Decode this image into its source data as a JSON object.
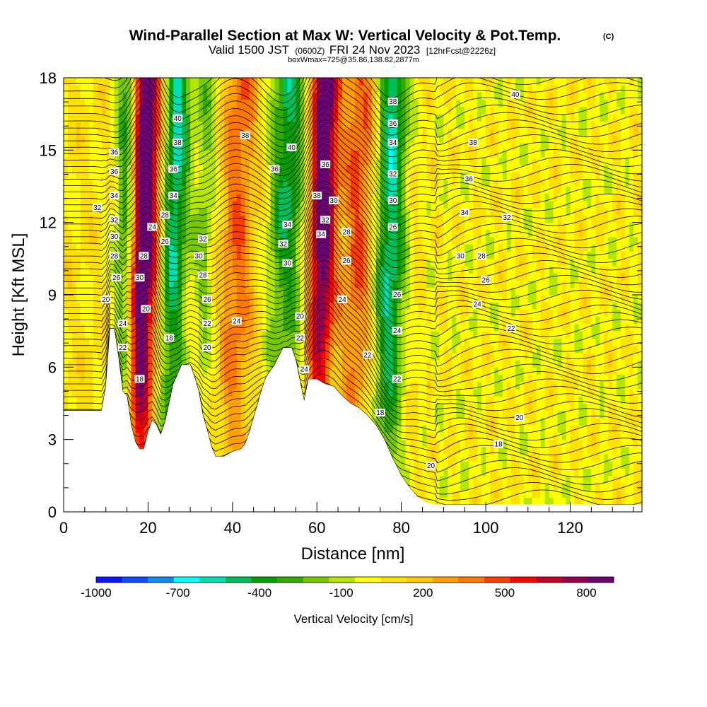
{
  "chart_data": {
    "type": "heatmap",
    "title": "Wind-Parallel Section at Max W: Vertical Velocity & Pot.Temp.",
    "title_mark": "(C)",
    "subtitle_main": "Valid 1500 JST",
    "subtitle_z": "(0600Z)",
    "subtitle_date": "FRI 24 Nov 2023",
    "subtitle_fcst": "[12hrFcst@2226z]",
    "subtitle2": "boxWmax=725@35.86,138.82,2877m",
    "xlabel": "Distance [nm]",
    "ylabel": "Height [Kft MSL]",
    "xlim": [
      0,
      137
    ],
    "ylim": [
      0,
      18
    ],
    "x_ticks": [
      0,
      20,
      40,
      60,
      80,
      100,
      120
    ],
    "y_ticks": [
      0,
      3,
      6,
      9,
      12,
      15,
      18
    ],
    "grid": false,
    "colorbar": {
      "label": "Vertical Velocity [cm/s]",
      "levels": [
        -1000,
        -700,
        -400,
        -100,
        200,
        500,
        800
      ],
      "colors": [
        "#0a14ff",
        "#0a4bff",
        "#0a8cf0",
        "#00ffff",
        "#00e0b4",
        "#00be5a",
        "#00a000",
        "#32aa00",
        "#78c800",
        "#b4e600",
        "#ffff00",
        "#ffe100",
        "#ffc800",
        "#ffa000",
        "#ff7800",
        "#ff3c00",
        "#ff0000",
        "#c80028",
        "#960050",
        "#6e0078"
      ]
    },
    "terrain_nm_kft": [
      [
        0,
        4.2
      ],
      [
        9,
        4.2
      ],
      [
        10,
        5.2
      ],
      [
        11,
        7.6
      ],
      [
        12,
        7.6
      ],
      [
        13,
        6.4
      ],
      [
        14,
        5.0
      ],
      [
        15,
        4.8
      ],
      [
        16,
        3.6
      ],
      [
        17,
        2.9
      ],
      [
        18,
        2.6
      ],
      [
        19,
        2.6
      ],
      [
        20,
        3.3
      ],
      [
        21,
        3.8
      ],
      [
        22,
        3.6
      ],
      [
        23,
        3.2
      ],
      [
        24,
        3.7
      ],
      [
        25,
        4.5
      ],
      [
        26,
        5.3
      ],
      [
        27,
        5.7
      ],
      [
        28,
        6.1
      ],
      [
        30,
        6.1
      ],
      [
        31,
        5.6
      ],
      [
        32,
        5.0
      ],
      [
        33,
        4.0
      ],
      [
        34,
        3.4
      ],
      [
        35,
        2.7
      ],
      [
        36,
        2.3
      ],
      [
        38,
        2.3
      ],
      [
        40,
        2.5
      ],
      [
        42,
        2.6
      ],
      [
        43,
        2.8
      ],
      [
        44,
        3.3
      ],
      [
        45,
        3.9
      ],
      [
        46,
        4.5
      ],
      [
        47,
        5.1
      ],
      [
        48,
        5.6
      ],
      [
        50,
        6.1
      ],
      [
        52,
        6.8
      ],
      [
        54,
        6.8
      ],
      [
        55,
        6.3
      ],
      [
        56,
        5.4
      ],
      [
        57,
        4.6
      ],
      [
        58,
        5.5
      ],
      [
        60,
        5.5
      ],
      [
        62,
        5.3
      ],
      [
        64,
        5.2
      ],
      [
        66,
        4.8
      ],
      [
        68,
        4.5
      ],
      [
        70,
        4.3
      ],
      [
        72,
        4.0
      ],
      [
        74,
        3.6
      ],
      [
        76,
        3.0
      ],
      [
        78,
        2.2
      ],
      [
        80,
        1.5
      ],
      [
        82,
        1.0
      ],
      [
        84,
        0.6
      ],
      [
        86,
        0.4
      ],
      [
        88,
        0.3
      ],
      [
        137,
        0.3
      ]
    ],
    "w_bands": [
      {
        "x": 18.5,
        "w": 1000,
        "width": 3.5
      },
      {
        "x": 14.5,
        "w": -550,
        "width": 2.5
      },
      {
        "x": 26.0,
        "w": -650,
        "width": 3.0
      },
      {
        "x": 33.0,
        "w": -250,
        "width": 2.5
      },
      {
        "x": 41.0,
        "w": 350,
        "width": 4.0
      },
      {
        "x": 52.5,
        "w": -550,
        "width": 4.0
      },
      {
        "x": 61.0,
        "w": 1000,
        "width": 3.0
      },
      {
        "x": 69.5,
        "w": 400,
        "width": 4.0
      },
      {
        "x": 77.0,
        "w": -650,
        "width": 3.5
      },
      {
        "x": 88.5,
        "w": -200,
        "width": 2.5
      }
    ],
    "theta_levels_C": [
      18,
      20,
      22,
      24,
      26,
      28,
      30,
      32,
      34,
      36,
      38,
      40
    ],
    "contour_labels": [
      {
        "v": "40",
        "x": 27,
        "y": 16.3
      },
      {
        "v": "38",
        "x": 27,
        "y": 15.3
      },
      {
        "v": "36",
        "x": 26,
        "y": 14.2
      },
      {
        "v": "34",
        "x": 26,
        "y": 13.1
      },
      {
        "v": "28",
        "x": 24,
        "y": 12.3
      },
      {
        "v": "26",
        "x": 24,
        "y": 11.2
      },
      {
        "v": "36",
        "x": 12,
        "y": 14.9
      },
      {
        "v": "36",
        "x": 12,
        "y": 14.1
      },
      {
        "v": "34",
        "x": 12,
        "y": 13.1
      },
      {
        "v": "32",
        "x": 8,
        "y": 12.6
      },
      {
        "v": "32",
        "x": 12,
        "y": 12.1
      },
      {
        "v": "30",
        "x": 12,
        "y": 11.4
      },
      {
        "v": "28",
        "x": 12,
        "y": 10.6
      },
      {
        "v": "26",
        "x": 12.5,
        "y": 9.7
      },
      {
        "v": "20",
        "x": 10,
        "y": 8.8
      },
      {
        "v": "24",
        "x": 14,
        "y": 7.8
      },
      {
        "v": "22",
        "x": 14,
        "y": 6.8
      },
      {
        "v": "24",
        "x": 21,
        "y": 11.8
      },
      {
        "v": "28",
        "x": 19,
        "y": 10.6
      },
      {
        "v": "30",
        "x": 18,
        "y": 9.7
      },
      {
        "v": "20",
        "x": 19.5,
        "y": 8.4
      },
      {
        "v": "18",
        "x": 18,
        "y": 5.5
      },
      {
        "v": "18",
        "x": 25,
        "y": 7.2
      },
      {
        "v": "38",
        "x": 43,
        "y": 15.6
      },
      {
        "v": "32",
        "x": 33,
        "y": 11.3
      },
      {
        "v": "30",
        "x": 32,
        "y": 10.6
      },
      {
        "v": "28",
        "x": 33,
        "y": 9.8
      },
      {
        "v": "26",
        "x": 34,
        "y": 8.8
      },
      {
        "v": "22",
        "x": 34,
        "y": 7.8
      },
      {
        "v": "20",
        "x": 34,
        "y": 6.8
      },
      {
        "v": "24",
        "x": 41,
        "y": 7.9
      },
      {
        "v": "40",
        "x": 54,
        "y": 15.1
      },
      {
        "v": "36",
        "x": 50,
        "y": 14.2
      },
      {
        "v": "34",
        "x": 53,
        "y": 11.9
      },
      {
        "v": "32",
        "x": 52,
        "y": 11.1
      },
      {
        "v": "30",
        "x": 53,
        "y": 10.3
      },
      {
        "v": "20",
        "x": 56,
        "y": 8.1
      },
      {
        "v": "22",
        "x": 56,
        "y": 7.2
      },
      {
        "v": "24",
        "x": 57,
        "y": 5.9
      },
      {
        "v": "36",
        "x": 62,
        "y": 14.4
      },
      {
        "v": "38",
        "x": 60,
        "y": 13.1
      },
      {
        "v": "30",
        "x": 64,
        "y": 12.9
      },
      {
        "v": "32",
        "x": 62,
        "y": 12.1
      },
      {
        "v": "34",
        "x": 61,
        "y": 11.5
      },
      {
        "v": "28",
        "x": 67,
        "y": 11.6
      },
      {
        "v": "26",
        "x": 67,
        "y": 10.4
      },
      {
        "v": "24",
        "x": 66,
        "y": 8.8
      },
      {
        "v": "22",
        "x": 72,
        "y": 6.5
      },
      {
        "v": "18",
        "x": 75,
        "y": 4.1
      },
      {
        "v": "38",
        "x": 78,
        "y": 17.0
      },
      {
        "v": "36",
        "x": 78,
        "y": 16.1
      },
      {
        "v": "34",
        "x": 78,
        "y": 15.3
      },
      {
        "v": "32",
        "x": 78,
        "y": 14.0
      },
      {
        "v": "30",
        "x": 78,
        "y": 12.9
      },
      {
        "v": "26",
        "x": 78,
        "y": 11.8
      },
      {
        "v": "26",
        "x": 79,
        "y": 9.0
      },
      {
        "v": "24",
        "x": 79,
        "y": 7.5
      },
      {
        "v": "22",
        "x": 79,
        "y": 5.5
      },
      {
        "v": "40",
        "x": 107,
        "y": 17.3
      },
      {
        "v": "38",
        "x": 97,
        "y": 15.3
      },
      {
        "v": "36",
        "x": 96,
        "y": 13.8
      },
      {
        "v": "34",
        "x": 95,
        "y": 12.4
      },
      {
        "v": "32",
        "x": 105,
        "y": 12.2
      },
      {
        "v": "30",
        "x": 94,
        "y": 10.6
      },
      {
        "v": "28",
        "x": 99,
        "y": 10.6
      },
      {
        "v": "26",
        "x": 100,
        "y": 9.6
      },
      {
        "v": "24",
        "x": 98,
        "y": 8.6
      },
      {
        "v": "22",
        "x": 106,
        "y": 7.6
      },
      {
        "v": "20",
        "x": 108,
        "y": 3.9
      },
      {
        "v": "18",
        "x": 103,
        "y": 2.8
      },
      {
        "v": "20",
        "x": 87,
        "y": 1.9
      }
    ]
  }
}
